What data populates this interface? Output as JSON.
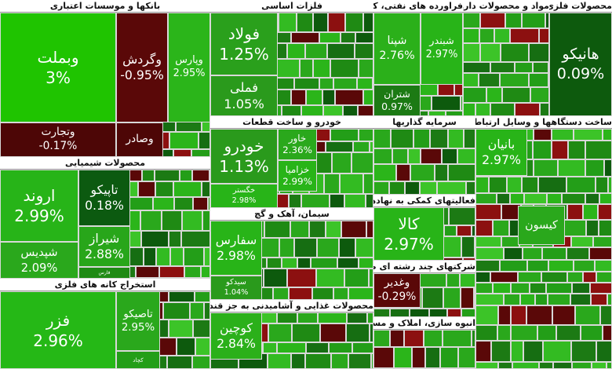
{
  "sectors": [
    {
      "title": "بانکها و موسسات اعتباری",
      "tiles": [
        {
          "name": "وبملت",
          "change": "3%",
          "color": "#1fc400"
        },
        {
          "name": "وتجارت",
          "change": "-0.17%",
          "color": "#4d0606"
        },
        {
          "name": "وگردش",
          "change": "-0.95%",
          "color": "#5a0808"
        },
        {
          "name": "وپارس",
          "change": "2.95%",
          "color": "#2bb51a"
        },
        {
          "name": "وصادر",
          "color": "#4d0606"
        }
      ]
    },
    {
      "title": "محصولات شیمیایی",
      "tiles": [
        {
          "name": "اروند",
          "change": "2.99%",
          "color": "#27b418"
        },
        {
          "name": "شپدیس",
          "change": "2.09%",
          "color": "#2aa81c"
        },
        {
          "name": "تاپیکو",
          "change": "0.18%",
          "color": "#0c5a10"
        },
        {
          "name": "شیراز",
          "change": "2.88%",
          "color": "#28a61a"
        },
        {
          "name": "فارس",
          "color": "#1f8a14"
        }
      ]
    },
    {
      "title": "استخراج کانه های فلزی",
      "tiles": [
        {
          "name": "فزر",
          "change": "2.96%",
          "color": "#25b816"
        },
        {
          "name": "تاصیکو",
          "change": "2.95%",
          "color": "#2aa81c"
        },
        {
          "name": "کچاد",
          "color": "#239e18"
        }
      ]
    },
    {
      "title": "فلزات اساسی",
      "tiles": [
        {
          "name": "فولاد",
          "change": "1.25%",
          "color": "#2aa01c"
        },
        {
          "name": "فملی",
          "change": "1.05%",
          "color": "#2a9a1c"
        }
      ]
    },
    {
      "title": "فراورده های نفتی، کک و سوخت هسته ای",
      "tiles": [
        {
          "name": "شپنا",
          "change": "2.76%",
          "color": "#2bb01a"
        },
        {
          "name": "شبندر",
          "change": "2.97%",
          "color": "#28b418"
        },
        {
          "name": "شتران",
          "change": "0.97%",
          "color": "#1c7a14"
        }
      ]
    },
    {
      "title": "مواد و محصولات دارویی",
      "tiles": []
    },
    {
      "title": "محصولات فلزی",
      "tiles": [
        {
          "name": "هانیکو",
          "change": "0.09%",
          "color": "#0d5a0d"
        }
      ]
    },
    {
      "title": "خودرو و ساخت قطعات",
      "tiles": [
        {
          "name": "خودرو",
          "change": "1.13%",
          "color": "#2a9a1c"
        },
        {
          "name": "خگستر",
          "change": "2.98%",
          "color": "#28b418"
        },
        {
          "name": "خاور",
          "change": "2.36%",
          "color": "#2aa81c"
        },
        {
          "name": "خزامیا",
          "change": "2.99%",
          "color": "#28b418"
        }
      ]
    },
    {
      "title": "سیمان، آهک و گچ",
      "tiles": [
        {
          "name": "سفارس",
          "change": "2.98%",
          "color": "#28b418"
        },
        {
          "name": "سیدکو",
          "change": "1.04%",
          "color": "#2a9a1c"
        }
      ]
    },
    {
      "title": "محصولات غذایی و آشامیدنی به جز قند و شکر",
      "tiles": [
        {
          "name": "کوچین",
          "change": "2.84%",
          "color": "#2bb01a"
        }
      ]
    },
    {
      "title": "سرمایه گذاریها",
      "tiles": []
    },
    {
      "title": "فعالیتهای کمکی به نهادهای مالی واسط",
      "tiles": [
        {
          "name": "کالا",
          "change": "2.97%",
          "color": "#28b418"
        }
      ]
    },
    {
      "title": "شرکتهای چند رشته ای صنعتی",
      "tiles": [
        {
          "name": "وغدیر",
          "change": "-0.29%",
          "color": "#5a0808"
        }
      ]
    },
    {
      "title": "انبوه سازی، املاک و مستغلات",
      "tiles": []
    },
    {
      "title": "ساخت دستگاهها و وسایل ارتباطی",
      "tiles": [
        {
          "name": "بانیان",
          "change": "2.97%",
          "color": "#28b418"
        },
        {
          "name": "کیسون",
          "color": "#2aa81c"
        }
      ]
    }
  ]
}
